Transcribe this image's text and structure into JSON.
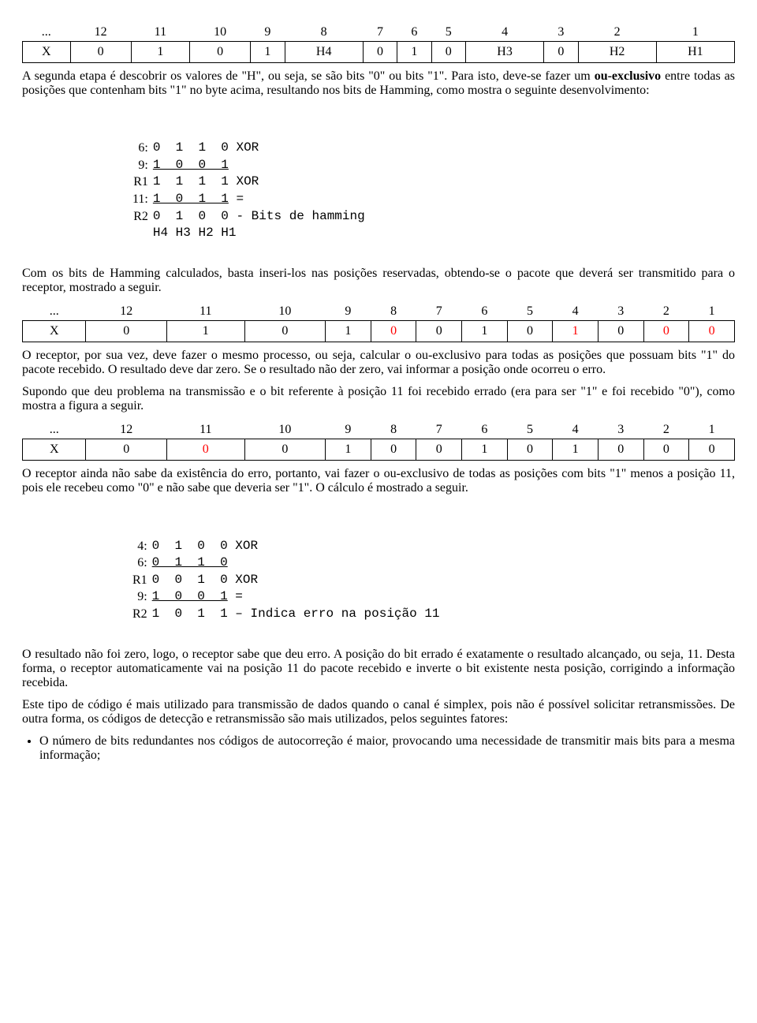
{
  "table1": {
    "headers": [
      "...",
      "12",
      "11",
      "10",
      "9",
      "8",
      "7",
      "6",
      "5",
      "4",
      "3",
      "2",
      "1"
    ],
    "cells": [
      "X",
      "0",
      "1",
      "0",
      "1",
      "H4",
      "0",
      "1",
      "0",
      "H3",
      "0",
      "H2",
      "H1"
    ],
    "red": [
      false,
      false,
      false,
      false,
      false,
      false,
      false,
      false,
      false,
      false,
      false,
      false,
      false
    ]
  },
  "para1": "A segunda etapa é descobrir os valores de \"H\", ou seja, se são bits \"0\" ou bits \"1\". Para isto, deve-se fazer um ou-exclusivo entre todas as posições que contenham bits \"1\" no byte acima, resultando nos bits de Hamming, como mostra o seguinte desenvolvimento:",
  "bold1": "ou-exclusivo",
  "xor1": {
    "rows": [
      {
        "label": "6:",
        "bits": "0  1  1  0",
        "suffix": "XOR",
        "ul": false
      },
      {
        "label": "9:",
        "bits": "1  0  0  1",
        "suffix": "",
        "ul": true
      },
      {
        "label": "R1",
        "bits": "1  1  1  1",
        "suffix": "XOR",
        "ul": false
      },
      {
        "label": "11:",
        "bits": "1  0  1  1",
        "suffix": "=",
        "ul": true
      },
      {
        "label": "R2",
        "bits": "0  1  0  0",
        "suffix": "- Bits de hamming",
        "ul": false
      },
      {
        "label": "",
        "bits": "H4 H3 H2 H1",
        "suffix": "",
        "ul": false
      }
    ]
  },
  "para2": "Com os bits de Hamming calculados, basta inseri-los nas posições reservadas, obtendo-se o pacote que deverá ser transmitido para o receptor, mostrado a seguir.",
  "table2": {
    "headers": [
      "...",
      "12",
      "11",
      "10",
      "9",
      "8",
      "7",
      "6",
      "5",
      "4",
      "3",
      "2",
      "1"
    ],
    "cells": [
      "X",
      "0",
      "1",
      "0",
      "1",
      "0",
      "0",
      "1",
      "0",
      "1",
      "0",
      "0",
      "0"
    ],
    "red": [
      false,
      false,
      false,
      false,
      false,
      true,
      false,
      false,
      false,
      true,
      false,
      true,
      true
    ]
  },
  "para3": "O receptor, por sua vez, deve fazer o mesmo processo, ou seja, calcular o ou-exclusivo para todas as posições que possuam bits \"1\" do pacote recebido. O resultado deve dar zero. Se o resultado não der zero, vai informar a posição onde ocorreu o erro.",
  "para4": "Supondo que deu problema na transmissão e o bit referente à posição 11 foi recebido errado (era para ser \"1\" e foi recebido \"0\"), como mostra a figura a seguir.",
  "table3": {
    "headers": [
      "...",
      "12",
      "11",
      "10",
      "9",
      "8",
      "7",
      "6",
      "5",
      "4",
      "3",
      "2",
      "1"
    ],
    "cells": [
      "X",
      "0",
      "0",
      "0",
      "1",
      "0",
      "0",
      "1",
      "0",
      "1",
      "0",
      "0",
      "0"
    ],
    "red": [
      false,
      false,
      true,
      false,
      false,
      false,
      false,
      false,
      false,
      false,
      false,
      false,
      false
    ]
  },
  "para5": "O receptor ainda não sabe da existência do erro, portanto, vai fazer o ou-exclusivo de todas as posições com bits \"1\" menos a posição 11, pois ele recebeu como \"0\" e não sabe que deveria ser \"1\". O cálculo é mostrado a seguir.",
  "xor2": {
    "rows": [
      {
        "label": "4:",
        "bits": "0  1  0  0",
        "suffix": "XOR",
        "ul": false
      },
      {
        "label": "6:",
        "bits": "0  1  1  0",
        "suffix": "",
        "ul": true
      },
      {
        "label": "R1",
        "bits": "0  0  1  0",
        "suffix": "XOR",
        "ul": false
      },
      {
        "label": "9:",
        "bits": "1  0  0  1",
        "suffix": "=",
        "ul": true
      },
      {
        "label": "R2",
        "bits": "1  0  1  1",
        "suffix": "– Indica erro na posição 11",
        "ul": false
      }
    ]
  },
  "para6": "O resultado não foi zero, logo, o receptor sabe que deu erro. A posição do bit errado é exatamente o resultado alcançado, ou seja, 11. Desta forma, o receptor automaticamente vai na posição 11 do pacote recebido e inverte o bit existente nesta posição, corrigindo a informação recebida.",
  "para7": "Este tipo de código é mais utilizado para transmissão de dados quando o canal é simplex, pois não é possível solicitar retransmissões. De outra forma, os códigos de detecção e retransmissão são mais utilizados, pelos seguintes fatores:",
  "bullet1": "O número de bits redundantes nos códigos de autocorreção é maior, provocando uma necessidade de transmitir mais bits para a mesma informação;"
}
